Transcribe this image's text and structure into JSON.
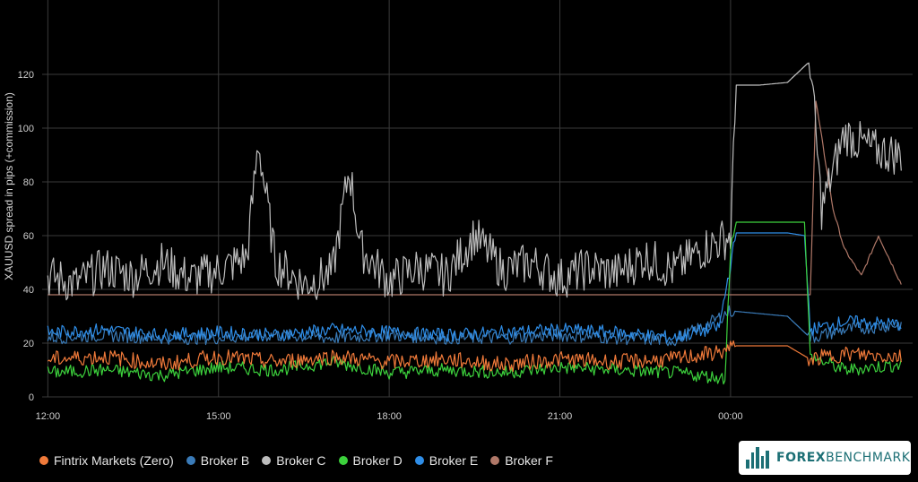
{
  "chart_data": {
    "type": "line",
    "ylabel": "XAUUSD spread in pips (+commission)",
    "ylim": [
      0,
      130
    ],
    "yticks": [
      0,
      20,
      40,
      60,
      80,
      100,
      120
    ],
    "xticks": [
      "12:00",
      "15:00",
      "18:00",
      "21:00",
      "00:00"
    ],
    "x_hours_range": [
      11.9,
      27.2
    ],
    "grid": true,
    "legend_position": "bottom-left",
    "series": [
      {
        "name": "Fintrix Markets (Zero)",
        "color": "#f07a3a",
        "x": [
          12,
          13,
          14,
          15,
          16,
          17,
          18,
          19,
          20,
          21,
          22,
          23,
          23.9,
          24.1,
          25,
          25.4,
          26,
          27
        ],
        "values": [
          14,
          15,
          12,
          15,
          13,
          15,
          13,
          14,
          12,
          14,
          13,
          14,
          17,
          19,
          19,
          14,
          16,
          15
        ]
      },
      {
        "name": "Broker B",
        "color": "#3a7bb8",
        "x": [
          12,
          13,
          14,
          15,
          16,
          17,
          18,
          19,
          20,
          21,
          22,
          23,
          23.6,
          24.0,
          24.5,
          25,
          25.4,
          26,
          27
        ],
        "values": [
          22,
          23,
          22,
          22,
          23,
          22,
          23,
          22,
          22,
          23,
          22,
          21,
          27,
          32,
          31,
          30,
          22,
          25,
          27
        ]
      },
      {
        "name": "Broker C",
        "color": "#bdbdbd",
        "x": [
          12,
          12.5,
          13,
          13.5,
          14,
          14.5,
          15,
          15.5,
          15.7,
          16,
          16.5,
          17,
          17.3,
          17.5,
          18,
          18.5,
          19,
          19.5,
          20,
          20.5,
          21,
          21.5,
          22,
          22.5,
          23,
          23.5,
          24,
          24.1,
          24.5,
          25,
          25.4,
          25.6,
          26,
          26.5,
          27
        ],
        "values": [
          45,
          42,
          48,
          45,
          50,
          44,
          47,
          52,
          95,
          50,
          42,
          46,
          85,
          55,
          43,
          48,
          45,
          60,
          47,
          50,
          44,
          48,
          46,
          52,
          47,
          55,
          60,
          116,
          116,
          117,
          125,
          70,
          98,
          92,
          90
        ]
      },
      {
        "name": "Broker D",
        "color": "#3cd13c",
        "x": [
          12,
          13,
          14,
          15,
          16,
          17,
          18,
          19,
          20,
          21,
          22,
          23,
          23.9,
          24.0,
          24.1,
          25,
          25.3,
          25.4,
          26,
          27
        ],
        "values": [
          9,
          10,
          8,
          11,
          10,
          13,
          9,
          10,
          9,
          11,
          10,
          9,
          7,
          55,
          65,
          65,
          65,
          15,
          10,
          12
        ]
      },
      {
        "name": "Broker E",
        "color": "#2f8ee8",
        "x": [
          12,
          13,
          14,
          15,
          16,
          17,
          18,
          19,
          20,
          21,
          22,
          23,
          23.8,
          24.1,
          25,
          25.3,
          25.4,
          26,
          27
        ],
        "values": [
          24,
          25,
          23,
          24,
          23,
          25,
          24,
          23,
          24,
          25,
          24,
          22,
          26,
          61,
          61,
          60,
          25,
          28,
          27
        ]
      },
      {
        "name": "Broker F",
        "color": "#b07868",
        "x": [
          12,
          14,
          16,
          18,
          20,
          22,
          24,
          25,
          25.4,
          25.5,
          25.8,
          26,
          26.3,
          26.6,
          27
        ],
        "values": [
          38,
          38,
          38,
          38,
          38,
          38,
          38,
          38,
          38,
          110,
          70,
          55,
          45,
          60,
          42
        ]
      }
    ]
  },
  "logo_text_bold": "FOREX",
  "logo_text_light": "BENCHMARK"
}
